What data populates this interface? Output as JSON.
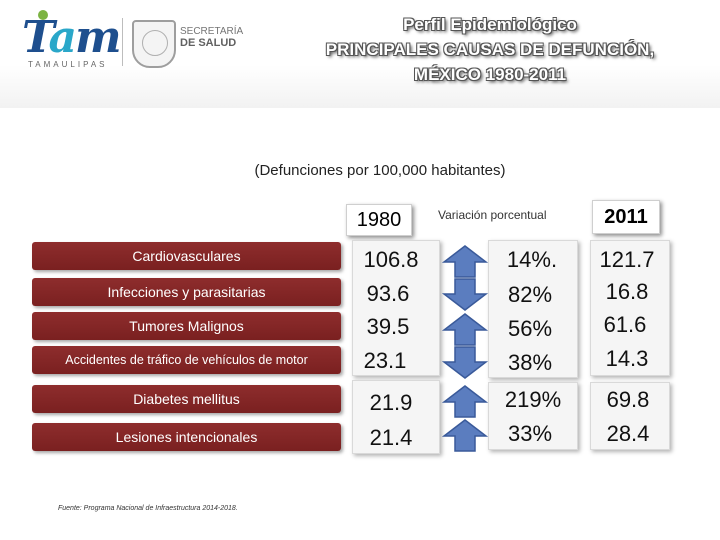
{
  "header": {
    "title_line1": "Perfil Epidemiológico",
    "title_line2": "PRINCIPALES CAUSAS DE DEFUNCIÓN,",
    "title_line3": "MÉXICO 1980-2011",
    "logo_text": "Tam",
    "logo_sub": "TAMAULIPAS",
    "secretaria_line1": "SECRETARÍA",
    "secretaria_line2": "DE SALUD"
  },
  "subtitle": "(Defunciones por 100,000 habitantes)",
  "columns": {
    "year_start": "1980",
    "variation": "Variación porcentual",
    "year_end": "2011"
  },
  "rows": [
    {
      "cause": "Cardiovasculares",
      "v1980": "106.8",
      "change": "14%.",
      "direction": "up",
      "v2011": "121.7"
    },
    {
      "cause": "Infecciones y parasitarias",
      "v1980": "93.6",
      "change": "82%",
      "direction": "down",
      "v2011": "16.8"
    },
    {
      "cause": "Tumores Malignos",
      "v1980": "39.5",
      "change": "56%",
      "direction": "up",
      "v2011": "61.6"
    },
    {
      "cause": "Accidentes de tráfico de vehículos de motor",
      "v1980": "23.1",
      "change": "38%",
      "direction": "down",
      "v2011": "14.3"
    },
    {
      "cause": "Diabetes mellitus",
      "v1980": "21.9",
      "change": "219%",
      "direction": "up",
      "v2011": "69.8"
    },
    {
      "cause": "Lesiones intencionales",
      "v1980": "21.4",
      "change": "33%",
      "direction": "up",
      "v2011": "28.4"
    }
  ],
  "source": "Fuente: Programa Nacional de Infraestructura 2014-2018.",
  "colors": {
    "cause_bar": "#8e2d2d",
    "arrow_fill": "#5b7dbf",
    "arrow_stroke": "#3a5a9a"
  }
}
